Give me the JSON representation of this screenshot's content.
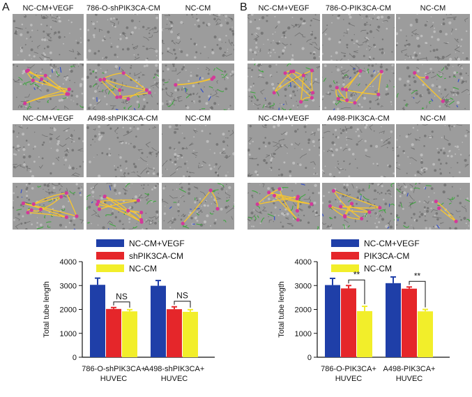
{
  "panels": {
    "a": {
      "letter": "A",
      "row1_labels": [
        "NC-CM+VEGF",
        "786-O-shPIK3CA-CM",
        "NC-CM"
      ],
      "row2_labels": [
        "NC-CM+VEGF",
        "A498-shPIK3CA-CM",
        "NC-CM"
      ]
    },
    "b": {
      "letter": "B",
      "row1_labels": [
        "NC-CM+VEGF",
        "786-O-PIK3CA-CM",
        "NC-CM"
      ],
      "row2_labels": [
        "NC-CM+VEGF",
        "A498-PIK3CA-CM",
        "NC-CM"
      ]
    }
  },
  "colors": {
    "blue": "#1f3fa8",
    "red": "#e5262a",
    "yellow": "#f2ee2a",
    "micrograph_bg": "#9c9c9c",
    "tube_yellow": "#f5c431",
    "tube_green": "#3aa63a",
    "node_magenta": "#d23a9a",
    "branch_blue": "#3550c8"
  },
  "chart_data": [
    {
      "type": "bar",
      "ylabel": "Total tube length",
      "ylim": [
        0,
        4000
      ],
      "yticks": [
        0,
        1000,
        2000,
        3000,
        4000
      ],
      "categories": [
        [
          "786-O-shPIK3CA+",
          "HUVEC"
        ],
        [
          "A498-shPIK3CA+",
          "HUVEC"
        ]
      ],
      "series": [
        {
          "name": "NC-CM+VEGF",
          "color": "#1f3fa8",
          "values": [
            3030,
            2990
          ],
          "errors": [
            280,
            220
          ]
        },
        {
          "name": "shPIK3CA-CM",
          "color": "#e5262a",
          "values": [
            2020,
            2010
          ],
          "errors": [
            60,
            100
          ]
        },
        {
          "name": "NC-CM",
          "color": "#f2ee2a",
          "values": [
            1920,
            1900
          ],
          "errors": [
            70,
            90
          ]
        }
      ],
      "annotations": [
        {
          "category": 0,
          "from_series": 1,
          "to_series": 2,
          "text": "NS"
        },
        {
          "category": 1,
          "from_series": 1,
          "to_series": 2,
          "text": "NS"
        }
      ],
      "legend": "top"
    },
    {
      "type": "bar",
      "ylabel": "Total tube length",
      "ylim": [
        0,
        4000
      ],
      "yticks": [
        0,
        1000,
        2000,
        3000,
        4000
      ],
      "categories": [
        [
          "786-O-PIK3CA+",
          "HUVEC"
        ],
        [
          "A498-PIK3CA+",
          "HUVEC"
        ]
      ],
      "series": [
        {
          "name": "NC-CM+VEGF",
          "color": "#1f3fa8",
          "values": [
            3020,
            3100
          ],
          "errors": [
            280,
            260
          ]
        },
        {
          "name": "PIK3CA-CM",
          "color": "#e5262a",
          "values": [
            2880,
            2870
          ],
          "errors": [
            120,
            70
          ]
        },
        {
          "name": "NC-CM",
          "color": "#f2ee2a",
          "values": [
            1930,
            1920
          ],
          "errors": [
            200,
            80
          ]
        }
      ],
      "annotations": [
        {
          "category": 0,
          "from_series": 1,
          "to_series": 2,
          "text": "**"
        },
        {
          "category": 1,
          "from_series": 1,
          "to_series": 2,
          "text": "**"
        }
      ],
      "legend": "top"
    }
  ]
}
